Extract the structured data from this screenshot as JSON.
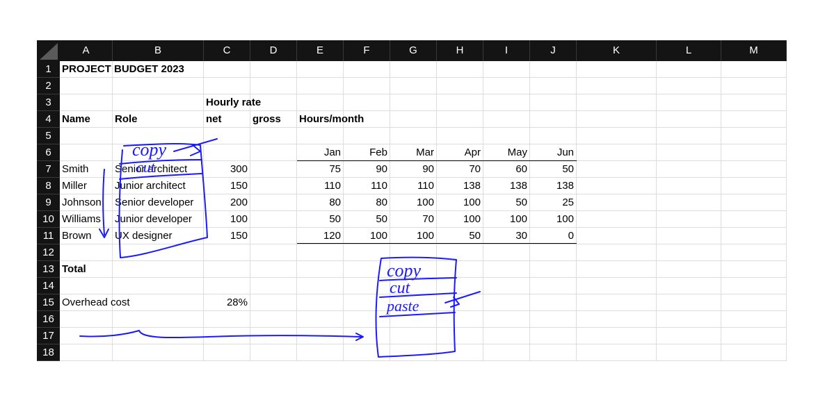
{
  "columns": [
    "A",
    "B",
    "C",
    "D",
    "E",
    "F",
    "G",
    "H",
    "I",
    "J",
    "K",
    "L",
    "M"
  ],
  "rows": [
    "1",
    "2",
    "3",
    "4",
    "5",
    "6",
    "7",
    "8",
    "9",
    "10",
    "11",
    "12",
    "13",
    "14",
    "15",
    "16",
    "17",
    "18"
  ],
  "cells": {
    "A1": "PROJECT BUDGET 2023",
    "C3": "Hourly rate",
    "A4": "Name",
    "B4": "Role",
    "C4": "net",
    "D4": "gross",
    "E4": "Hours/month",
    "E6": "Jan",
    "F6": "Feb",
    "G6": "Mar",
    "H6": "Apr",
    "I6": "May",
    "J6": "Jun",
    "A7": "Smith",
    "B7": "Senior architect",
    "C7": "300",
    "E7": "75",
    "F7": "90",
    "G7": "90",
    "H7": "70",
    "I7": "60",
    "J7": "50",
    "A8": "Miller",
    "B8": "Junior architect",
    "C8": "150",
    "E8": "110",
    "F8": "110",
    "G8": "110",
    "H8": "138",
    "I8": "138",
    "J8": "138",
    "A9": "Johnson",
    "B9": "Senior developer",
    "C9": "200",
    "E9": "80",
    "F9": "80",
    "G9": "100",
    "H9": "100",
    "I9": "50",
    "J9": "25",
    "A10": "Williams",
    "B10": "Junior developer",
    "C10": "100",
    "E10": "50",
    "F10": "50",
    "G10": "70",
    "H10": "100",
    "I10": "100",
    "J10": "100",
    "A11": "Brown",
    "B11": "UX designer",
    "C11": "150",
    "E11": "120",
    "F11": "100",
    "G11": "100",
    "H11": "50",
    "I11": "30",
    "J11": "0",
    "A13": "Total",
    "A15": "Overhead cost",
    "C15": "28%"
  },
  "bold_cells": [
    "A1",
    "C3",
    "A4",
    "B4",
    "C4",
    "D4",
    "E4",
    "A13"
  ],
  "right_aligned_cells": [
    "C7",
    "C8",
    "C9",
    "C10",
    "C11",
    "C15",
    "E6",
    "F6",
    "G6",
    "H6",
    "I6",
    "J6",
    "E7",
    "F7",
    "G7",
    "H7",
    "I7",
    "J7",
    "E8",
    "F8",
    "G8",
    "H8",
    "I8",
    "J8",
    "E9",
    "F9",
    "G9",
    "H9",
    "I9",
    "J9",
    "E10",
    "F10",
    "G10",
    "H10",
    "I10",
    "J10",
    "E11",
    "F11",
    "G11",
    "H11",
    "I11",
    "J11"
  ],
  "annotations": {
    "ink_color": "#1a1aff",
    "menu_small": {
      "copy": "copy",
      "cut": "cut"
    },
    "menu_large": {
      "copy": "copy",
      "cut": "cut",
      "paste": "paste"
    }
  },
  "theme": {
    "header_bg": "#141414",
    "header_fg": "#ffffff",
    "grid": "#dcdcdc"
  }
}
